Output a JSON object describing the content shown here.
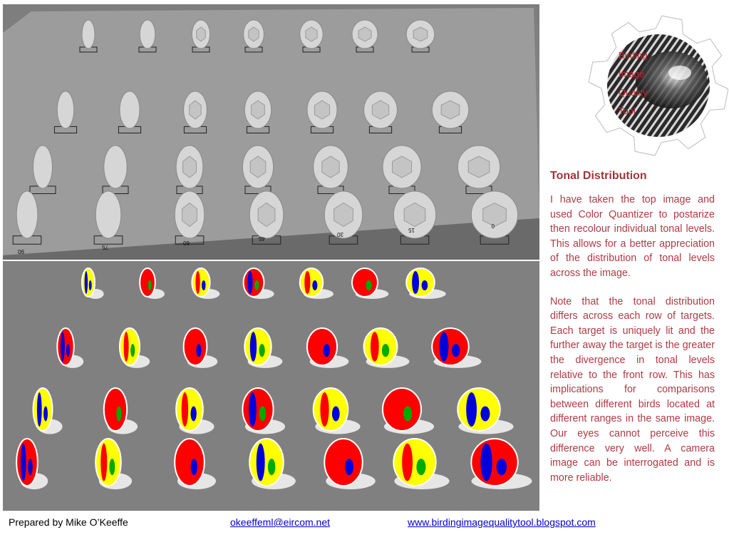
{
  "images": {
    "top_photo": "grayscale-targets-photo",
    "bottom_photo": "posterized-tonal-targets",
    "row_labels": [
      "90",
      "75",
      "60",
      "45",
      "30",
      "15",
      "0"
    ]
  },
  "logo": {
    "lines": [
      "Birding",
      "Image",
      "Quality",
      "Tool"
    ],
    "text_color": "#c0272d"
  },
  "sidebar": {
    "title": "Tonal Distribution",
    "paragraphs": [
      "I have taken the top image and used Color Quantizer to postarize then recolour individual tonal levels.  This allows for a better appreciation of the distribution of tonal levels across the image.",
      "Note that the tonal distribution differs across each row of targets.  Each target is uniquely lit and the further away the target is the greater the divergence in tonal levels relative to the front row.   This has implications for comparisons between different birds located at different ranges in the same image.  Our eyes cannot perceive this difference very well.   A camera    image can be interrogated and is more reliable."
    ]
  },
  "footer": {
    "author": "Prepared by Mike O’Keeffe",
    "email": "okeeffeml@eircom.net",
    "website": "www.birdingimagequalitytool.blogspot.com"
  }
}
